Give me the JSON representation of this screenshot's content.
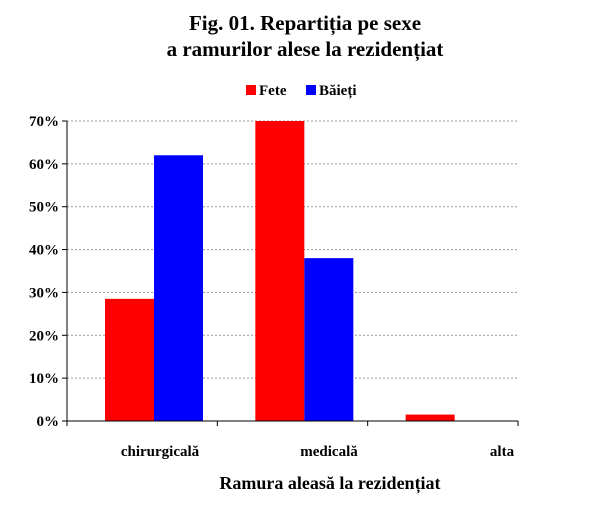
{
  "chart_data": {
    "type": "bar",
    "title": "Fig. 01. Repartiția pe sexe",
    "subtitle": "a ramurilor alese la rezidențiat",
    "xlabel": "Ramura aleasă la rezidențiat",
    "ylabel": "",
    "categories": [
      "chirurgicală",
      "medicală",
      "alta"
    ],
    "series": [
      {
        "name": "Fete",
        "values": [
          0.285,
          0.7,
          0.015
        ]
      },
      {
        "name": "Băieți",
        "values": [
          0.62,
          0.38,
          0.0
        ]
      }
    ],
    "ylim": [
      0,
      0.7
    ],
    "yticks": [
      0,
      0.1,
      0.2,
      0.3,
      0.4,
      0.5,
      0.6,
      0.7
    ],
    "ytick_labels": [
      "0%",
      "10%",
      "20%",
      "30%",
      "40%",
      "50%",
      "60%",
      "70%"
    ],
    "grid": true,
    "legend_position": "top",
    "colors": {
      "Fete": "#ff0000",
      "Băieți": "#0000ff",
      "grid": "#999999",
      "axis": "#000000"
    }
  }
}
